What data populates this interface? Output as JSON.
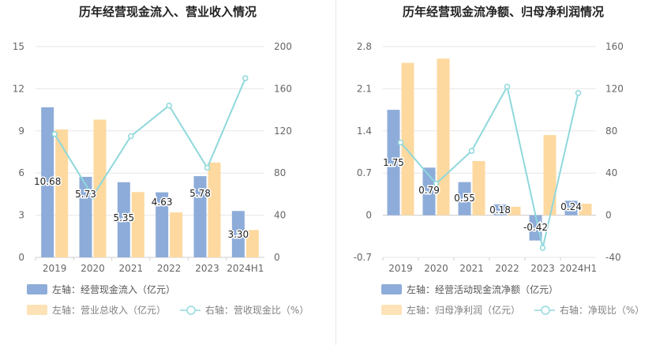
{
  "chart_data": [
    {
      "type": "bar",
      "title": "历年经营现金流入、营业收入情况",
      "categories": [
        "2019",
        "2020",
        "2021",
        "2022",
        "2023",
        "2024H1"
      ],
      "left_axis": {
        "ylim": [
          -0.0001,
          15
        ],
        "ticks": [
          "0",
          "3",
          "6",
          "9",
          "12",
          "15"
        ],
        "tick_values": [
          0,
          3,
          6,
          9,
          12,
          15
        ]
      },
      "right_axis": {
        "ylim": [
          0,
          200
        ],
        "ticks": [
          "0",
          "40",
          "80",
          "120",
          "160",
          "200"
        ],
        "tick_values": [
          0,
          40,
          80,
          120,
          160,
          200
        ]
      },
      "series": [
        {
          "name": "左轴：经营现金流入（亿元）",
          "kind": "bar",
          "axis": "left",
          "color": "#8eacd9",
          "values": [
            10.68,
            5.73,
            5.35,
            4.63,
            5.78,
            3.3
          ],
          "labels": [
            "10.68",
            "5.73",
            "5.35",
            "4.63",
            "5.78",
            "3.30"
          ]
        },
        {
          "name": "左轴：营业总收入（亿元）",
          "kind": "bar",
          "axis": "left",
          "color": "#fdd9a0",
          "values": [
            9.1,
            9.8,
            4.65,
            3.2,
            6.75,
            1.95
          ]
        },
        {
          "name": "右轴：营收现金比（%）",
          "kind": "line",
          "axis": "right",
          "color": "#8fd8dc",
          "values": [
            117,
            58,
            115,
            144,
            85,
            170
          ]
        }
      ],
      "legend": [
        "左轴：经营现金流入（亿元）",
        "左轴：营业总收入（亿元）",
        "右轴：营收现金比（%）"
      ],
      "legend_position": "bottom"
    },
    {
      "type": "bar",
      "title": "历年经营现金流净额、归母净利润情况",
      "categories": [
        "2019",
        "2020",
        "2021",
        "2022",
        "2023",
        "2024H1"
      ],
      "left_axis": {
        "ylim": [
          -0.7,
          2.8
        ],
        "ticks": [
          "-0.7",
          "0",
          "0.7",
          "1.4",
          "2.1",
          "2.8"
        ],
        "tick_values": [
          -0.7,
          0,
          0.7,
          1.4,
          2.1,
          2.8
        ]
      },
      "right_axis": {
        "ylim": [
          -40,
          160
        ],
        "ticks": [
          "-40",
          "0",
          "40",
          "80",
          "120",
          "160"
        ],
        "tick_values": [
          -40,
          0,
          40,
          80,
          120,
          160
        ]
      },
      "series": [
        {
          "name": "左轴：经营活动现金流净额（亿元）",
          "kind": "bar",
          "axis": "left",
          "color": "#8eacd9",
          "values": [
            1.75,
            0.79,
            0.55,
            0.18,
            -0.42,
            0.24
          ],
          "labels": [
            "1.75",
            "0.79",
            "0.55",
            "0.18",
            "-0.42",
            "0.24"
          ]
        },
        {
          "name": "左轴：归母净利润（亿元）",
          "kind": "bar",
          "axis": "left",
          "color": "#fdd9a0",
          "values": [
            2.53,
            2.6,
            0.9,
            0.14,
            1.33,
            0.19
          ]
        },
        {
          "name": "右轴：净现比（%）",
          "kind": "line",
          "axis": "right",
          "color": "#8fd8dc",
          "values": [
            69,
            30,
            61,
            122,
            -31,
            116
          ]
        }
      ],
      "legend": [
        "左轴：经营活动现金流净额（亿元）",
        "左轴：归母净利润（亿元）",
        "右轴：净现比（%）"
      ],
      "legend_position": "bottom"
    }
  ]
}
